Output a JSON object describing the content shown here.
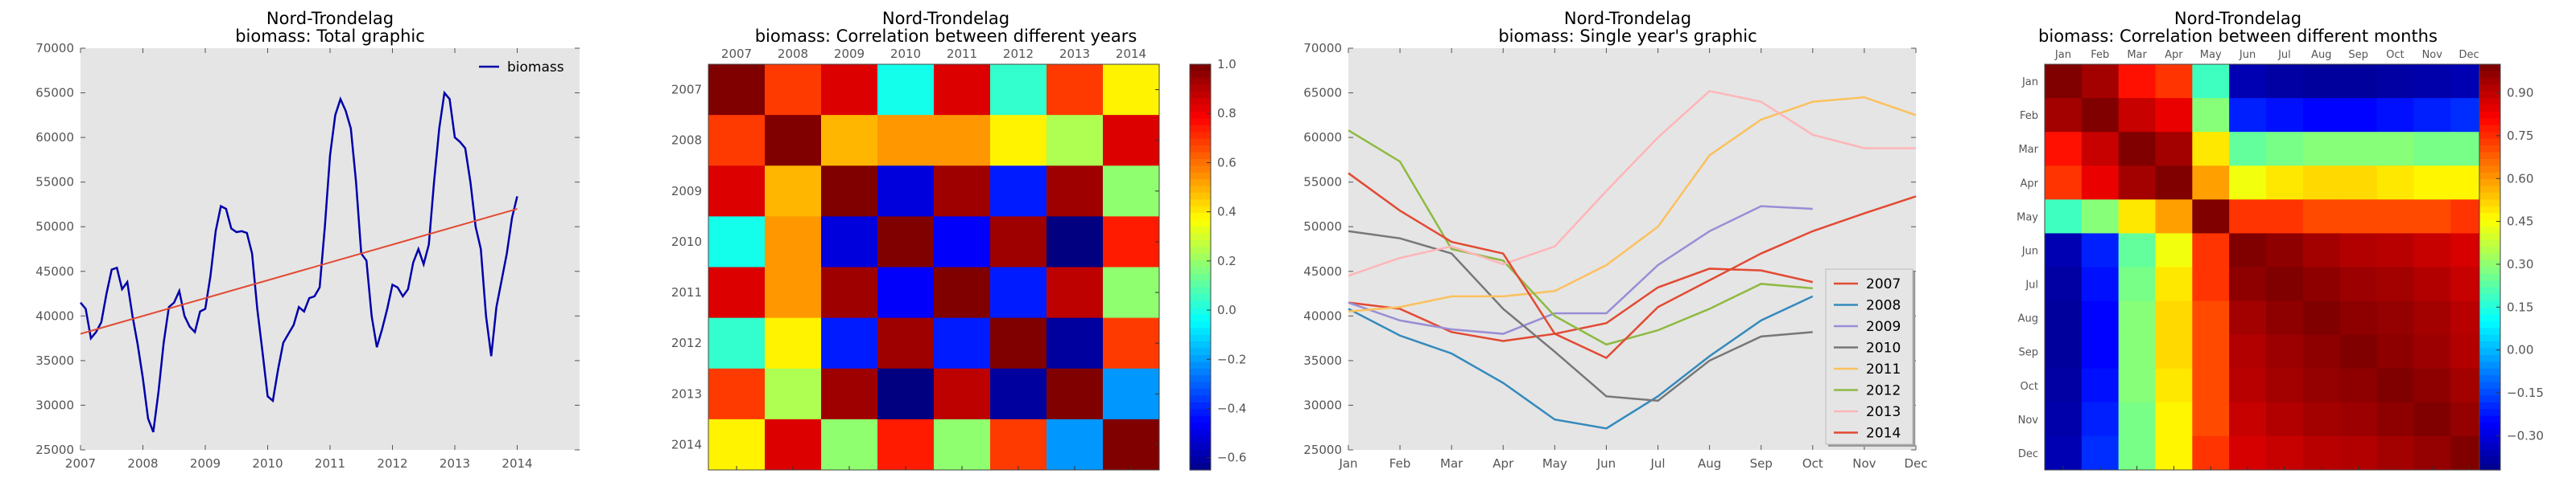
{
  "figure": {
    "region": "Nord-Trondelag",
    "background": "#ffffff",
    "axes_bg": "#e5e5e5"
  },
  "chart_data": [
    {
      "type": "line",
      "title": "Nord-Trondelag",
      "subtitle": "biomass: Total graphic",
      "xlabel": "",
      "ylabel": "",
      "xlim": [
        2007,
        2015
      ],
      "ylim": [
        25000,
        70000
      ],
      "xticks": [
        "2007",
        "2008",
        "2009",
        "2010",
        "2011",
        "2012",
        "2013",
        "2014"
      ],
      "yticks": [
        "25000",
        "30000",
        "35000",
        "40000",
        "45000",
        "50000",
        "55000",
        "60000",
        "65000",
        "70000"
      ],
      "legend": {
        "placement": "top-right",
        "label": "biomass"
      },
      "series": [
        {
          "name": "biomass",
          "color": "#0000aa",
          "values": [
            41500,
            40800,
            37500,
            38200,
            39300,
            42500,
            45200,
            45400,
            43000,
            43800,
            40000,
            36800,
            33000,
            28500,
            27000,
            31500,
            37000,
            41000,
            41500,
            42800,
            40000,
            38800,
            38200,
            40500,
            40800,
            44500,
            49500,
            52300,
            52000,
            49800,
            49400,
            49500,
            49300,
            47000,
            40800,
            36000,
            31000,
            30500,
            34000,
            37000,
            38000,
            39000,
            41000,
            40500,
            42000,
            42200,
            43200,
            50000,
            58000,
            62500,
            64300,
            63000,
            61000,
            55000,
            47000,
            46200,
            40000,
            36500,
            38500,
            40800,
            43500,
            43200,
            42200,
            43000,
            46000,
            47500,
            45800,
            48000,
            55000,
            61000,
            65000,
            64300,
            60000,
            59500,
            58800,
            55000,
            50000,
            47500,
            40000,
            35500,
            41000,
            44000,
            47000,
            51000,
            53400
          ]
        },
        {
          "name": "",
          "color": "#e24a33",
          "trend": true,
          "values": [
            38000,
            52000
          ]
        }
      ]
    },
    {
      "type": "heatmap",
      "title": "Nord-Trondelag",
      "subtitle": "biomass: Correlation between different years",
      "xlabel": "",
      "ylabel": "",
      "labels": [
        "2007",
        "2008",
        "2009",
        "2010",
        "2011",
        "2012",
        "2013",
        "2014"
      ],
      "colorbar": {
        "min": -0.65,
        "max": 1.0,
        "ticks": [
          "−0.6",
          "−0.4",
          "−0.2",
          "0.0",
          "0.2",
          "0.4",
          "0.6",
          "0.8",
          "1.0"
        ]
      },
      "matrix": [
        [
          1.0,
          0.7,
          0.85,
          0.0,
          0.85,
          0.05,
          0.7,
          0.4
        ],
        [
          0.7,
          1.0,
          0.5,
          0.55,
          0.55,
          0.4,
          0.25,
          0.85
        ],
        [
          0.85,
          0.5,
          1.0,
          -0.5,
          0.95,
          -0.4,
          0.95,
          0.2
        ],
        [
          0.0,
          0.55,
          -0.5,
          1.0,
          -0.45,
          0.95,
          -0.65,
          0.75
        ],
        [
          0.85,
          0.55,
          0.95,
          -0.45,
          1.0,
          -0.4,
          0.9,
          0.2
        ],
        [
          0.05,
          0.4,
          -0.4,
          0.95,
          -0.4,
          1.0,
          -0.6,
          0.7
        ],
        [
          0.7,
          0.25,
          0.95,
          -0.65,
          0.9,
          -0.6,
          1.0,
          -0.2
        ],
        [
          0.4,
          0.85,
          0.2,
          0.75,
          0.2,
          0.7,
          -0.2,
          1.0
        ]
      ]
    },
    {
      "type": "line",
      "title": "Nord-Trondelag",
      "subtitle": "biomass: Single year's graphic",
      "xlabel": "",
      "ylabel": "",
      "xlim": [
        0,
        11
      ],
      "ylim": [
        25000,
        70000
      ],
      "xticks": [
        "Jan",
        "Feb",
        "Mar",
        "Apr",
        "May",
        "Jun",
        "Jul",
        "Aug",
        "Sep",
        "Oct",
        "Nov",
        "Dec"
      ],
      "yticks": [
        "25000",
        "30000",
        "35000",
        "40000",
        "45000",
        "50000",
        "55000",
        "60000",
        "65000",
        "70000"
      ],
      "legend": {
        "placement": "lower-right"
      },
      "series": [
        {
          "name": "2007",
          "color": "#e24a33",
          "values": [
            41500,
            40800,
            38200,
            37200,
            38000,
            39200,
            43200,
            45300,
            45100,
            43800,
            null,
            null
          ]
        },
        {
          "name": "2008",
          "color": "#348abd",
          "values": [
            40800,
            37800,
            35800,
            32500,
            28400,
            27400,
            31000,
            35500,
            39500,
            42200,
            null,
            null
          ]
        },
        {
          "name": "2009",
          "color": "#988ed5",
          "values": [
            41500,
            39500,
            38500,
            38000,
            40300,
            40300,
            45700,
            49500,
            52300,
            52000,
            null,
            null
          ]
        },
        {
          "name": "2010",
          "color": "#777777",
          "values": [
            49500,
            48700,
            47000,
            40800,
            36000,
            31000,
            30500,
            35000,
            37700,
            38200,
            null,
            null
          ]
        },
        {
          "name": "2011",
          "color": "#fbc15e",
          "values": [
            40500,
            41000,
            42200,
            42200,
            42800,
            45700,
            50000,
            58000,
            62000,
            64000,
            64500,
            62500
          ]
        },
        {
          "name": "2012",
          "color": "#8eba42",
          "values": [
            60800,
            57300,
            47500,
            46200,
            40000,
            36800,
            38400,
            40800,
            43600,
            43100,
            null,
            null
          ]
        },
        {
          "name": "2013",
          "color": "#ffb5b8",
          "values": [
            44500,
            46500,
            47800,
            45800,
            47800,
            54000,
            60000,
            65200,
            64000,
            60300,
            58800,
            58800
          ]
        },
        {
          "name": "2014",
          "color": "#e24a33",
          "values": [
            56000,
            51800,
            48300,
            47000,
            38000,
            35300,
            41000,
            44000,
            47000,
            49500,
            51500,
            53400
          ]
        }
      ]
    },
    {
      "type": "heatmap",
      "title": "Nord-Trondelag",
      "subtitle": "biomass: Correlation between different months",
      "xlabel": "",
      "ylabel": "",
      "labels": [
        "Jan",
        "Feb",
        "Mar",
        "Apr",
        "May",
        "Jun",
        "Jul",
        "Aug",
        "Sep",
        "Oct",
        "Nov",
        "Dec"
      ],
      "colorbar": {
        "min": -0.42,
        "max": 1.0,
        "ticks": [
          "−0.30",
          "−0.15",
          "0.00",
          "0.15",
          "0.30",
          "0.45",
          "0.60",
          "0.75",
          "0.90"
        ]
      },
      "matrix": [
        [
          1.0,
          0.95,
          0.8,
          0.75,
          0.2,
          -0.35,
          -0.37,
          -0.38,
          -0.38,
          -0.37,
          -0.36,
          -0.35
        ],
        [
          0.95,
          1.0,
          0.9,
          0.85,
          0.3,
          -0.2,
          -0.22,
          -0.24,
          -0.24,
          -0.22,
          -0.2,
          -0.18
        ],
        [
          0.8,
          0.9,
          1.0,
          0.95,
          0.5,
          0.25,
          0.28,
          0.3,
          0.3,
          0.3,
          0.28,
          0.28
        ],
        [
          0.75,
          0.85,
          0.95,
          1.0,
          0.6,
          0.45,
          0.5,
          0.52,
          0.52,
          0.5,
          0.48,
          0.48
        ],
        [
          0.2,
          0.3,
          0.5,
          0.6,
          1.0,
          0.75,
          0.75,
          0.72,
          0.72,
          0.72,
          0.72,
          0.75
        ],
        [
          -0.35,
          -0.2,
          0.25,
          0.45,
          0.75,
          1.0,
          0.98,
          0.95,
          0.93,
          0.92,
          0.9,
          0.88
        ],
        [
          -0.37,
          -0.22,
          0.28,
          0.5,
          0.75,
          0.98,
          1.0,
          0.98,
          0.96,
          0.95,
          0.93,
          0.9
        ],
        [
          -0.38,
          -0.24,
          0.3,
          0.52,
          0.72,
          0.95,
          0.98,
          1.0,
          0.98,
          0.97,
          0.95,
          0.92
        ],
        [
          -0.38,
          -0.24,
          0.3,
          0.52,
          0.72,
          0.93,
          0.96,
          0.98,
          1.0,
          0.98,
          0.96,
          0.93
        ],
        [
          -0.37,
          -0.22,
          0.3,
          0.5,
          0.72,
          0.92,
          0.95,
          0.97,
          0.98,
          1.0,
          0.98,
          0.95
        ],
        [
          -0.36,
          -0.2,
          0.28,
          0.48,
          0.72,
          0.9,
          0.93,
          0.95,
          0.96,
          0.98,
          1.0,
          0.97
        ],
        [
          -0.35,
          -0.18,
          0.28,
          0.48,
          0.75,
          0.88,
          0.9,
          0.92,
          0.93,
          0.95,
          0.97,
          1.0
        ]
      ]
    }
  ]
}
